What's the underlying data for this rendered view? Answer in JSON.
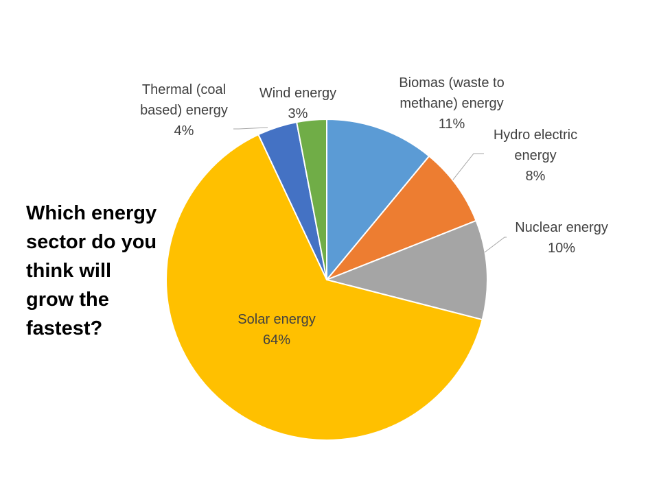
{
  "question": {
    "lines": [
      "Which energy",
      "sector do you",
      "think will",
      "grow the",
      "fastest?"
    ]
  },
  "chart_data": {
    "type": "pie",
    "title": "",
    "slices": [
      {
        "label_lines": [
          "Biomas (waste to",
          "methane) energy"
        ],
        "percent_label": "11%",
        "value": 11,
        "color": "#5B9BD5"
      },
      {
        "label_lines": [
          "Hydro electric",
          "energy"
        ],
        "percent_label": "8%",
        "value": 8,
        "color": "#ED7D31"
      },
      {
        "label_lines": [
          "Nuclear energy"
        ],
        "percent_label": "10%",
        "value": 10,
        "color": "#A5A5A5"
      },
      {
        "label_lines": [
          "Solar energy"
        ],
        "percent_label": "64%",
        "value": 64,
        "color": "#FFC000"
      },
      {
        "label_lines": [
          "Thermal (coal",
          "based) energy"
        ],
        "percent_label": "4%",
        "value": 4,
        "color": "#4472C4"
      },
      {
        "label_lines": [
          "Wind energy"
        ],
        "percent_label": "3%",
        "value": 3,
        "color": "#70AD47"
      }
    ],
    "start_angle_deg": 0,
    "direction": "clockwise",
    "legend": "none",
    "data_labels": "outside-with-leader-lines"
  }
}
